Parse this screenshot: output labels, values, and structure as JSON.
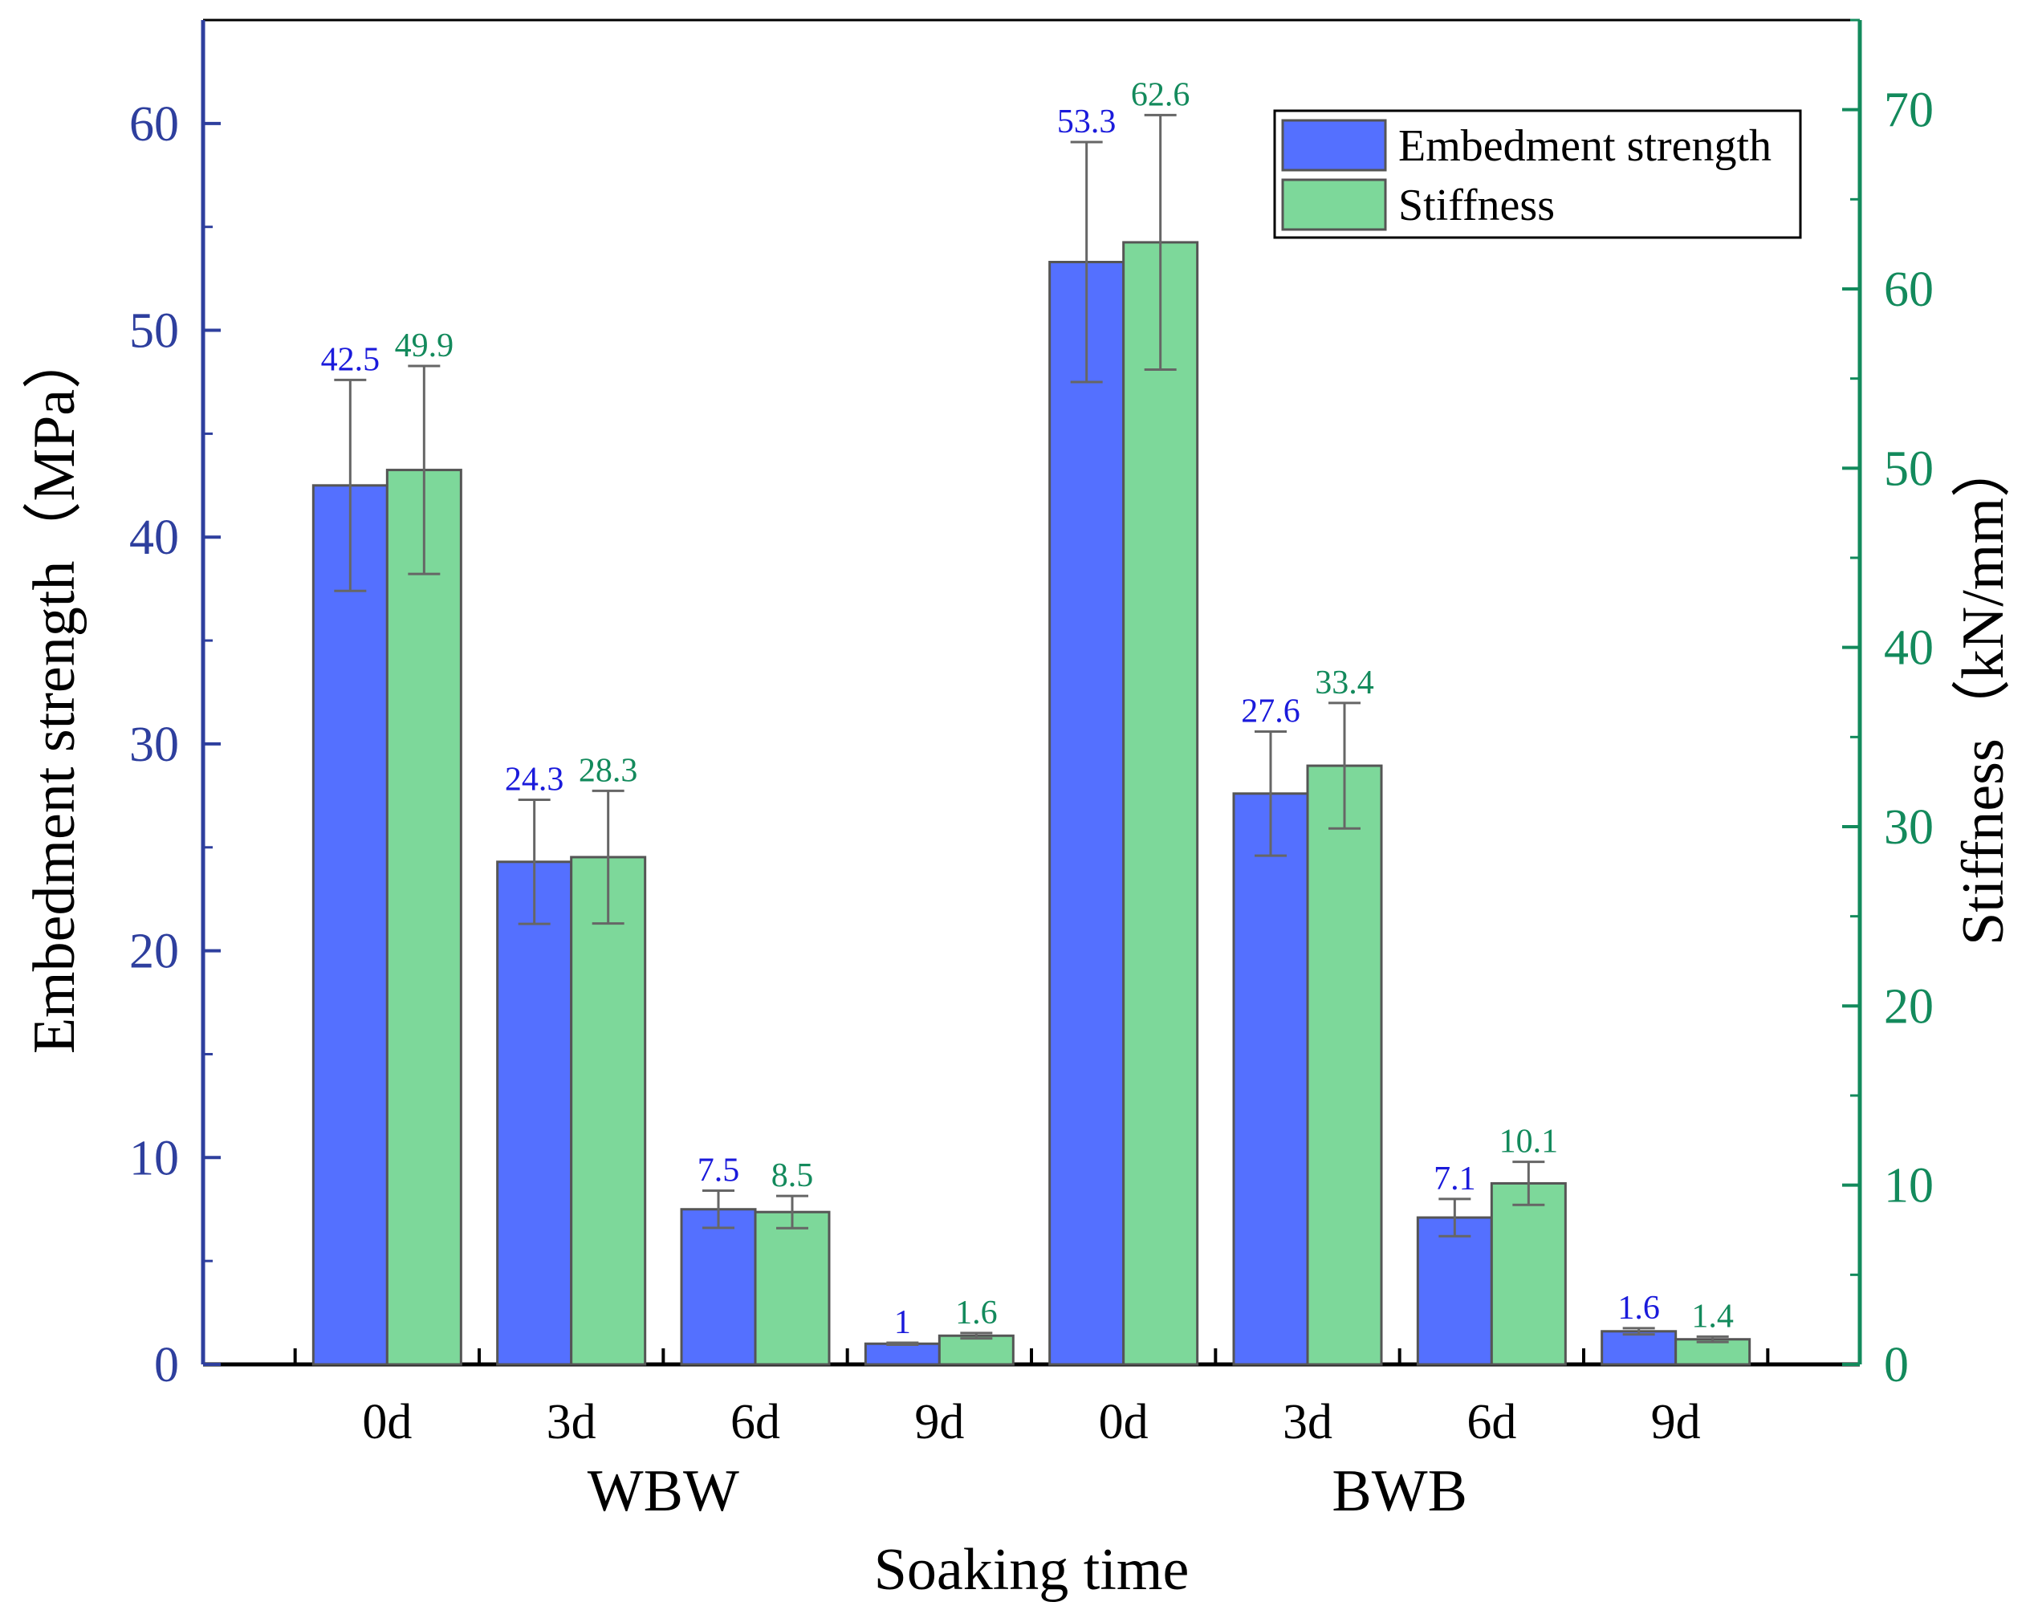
{
  "chart_data": {
    "type": "bar",
    "xlabel": "Soaking time",
    "categories": [
      "0d",
      "3d",
      "6d",
      "9d",
      "0d",
      "3d",
      "6d",
      "9d"
    ],
    "groups": [
      {
        "name": "WBW",
        "categories": [
          "0d",
          "3d",
          "6d",
          "9d"
        ]
      },
      {
        "name": "BWB",
        "categories": [
          "0d",
          "3d",
          "6d",
          "9d"
        ]
      }
    ],
    "series": [
      {
        "name": "Embedment strength",
        "axis": "left",
        "color": "#5470ff",
        "label_color": "#1a1adb",
        "values": [
          42.5,
          24.3,
          7.5,
          1,
          53.3,
          27.6,
          7.1,
          1.6
        ],
        "value_labels": [
          "42.5",
          "24.3",
          "7.5",
          "1",
          "53.3",
          "27.6",
          "7.1",
          "1.6"
        ],
        "error": [
          5.1,
          3.0,
          0.9,
          0.05,
          5.8,
          3.0,
          0.9,
          0.15
        ]
      },
      {
        "name": "Stiffness",
        "axis": "right",
        "color": "#7dd89a",
        "label_color": "#138a5c",
        "values": [
          49.9,
          28.3,
          8.5,
          1.6,
          62.6,
          33.4,
          10.1,
          1.4
        ],
        "value_labels": [
          "49.9",
          "28.3",
          "8.5",
          "1.6",
          "62.6",
          "33.4",
          "10.1",
          "1.4"
        ],
        "error": [
          5.8,
          3.7,
          0.9,
          0.15,
          7.1,
          3.5,
          1.2,
          0.15
        ]
      }
    ],
    "left_axis": {
      "label": "Embedment strength（MPa）",
      "ylim": [
        0,
        65
      ],
      "ticks": [
        0,
        10,
        20,
        30,
        40,
        50,
        60
      ],
      "color": "#2e3f9e"
    },
    "right_axis": {
      "label": "Stiffness（kN/mm）",
      "ylim": [
        0,
        75
      ],
      "ticks": [
        0,
        10,
        20,
        30,
        40,
        50,
        60,
        70
      ],
      "color": "#138a5c"
    },
    "legend": {
      "position": "top-right",
      "entries": [
        "Embedment strength",
        "Stiffness"
      ]
    }
  }
}
